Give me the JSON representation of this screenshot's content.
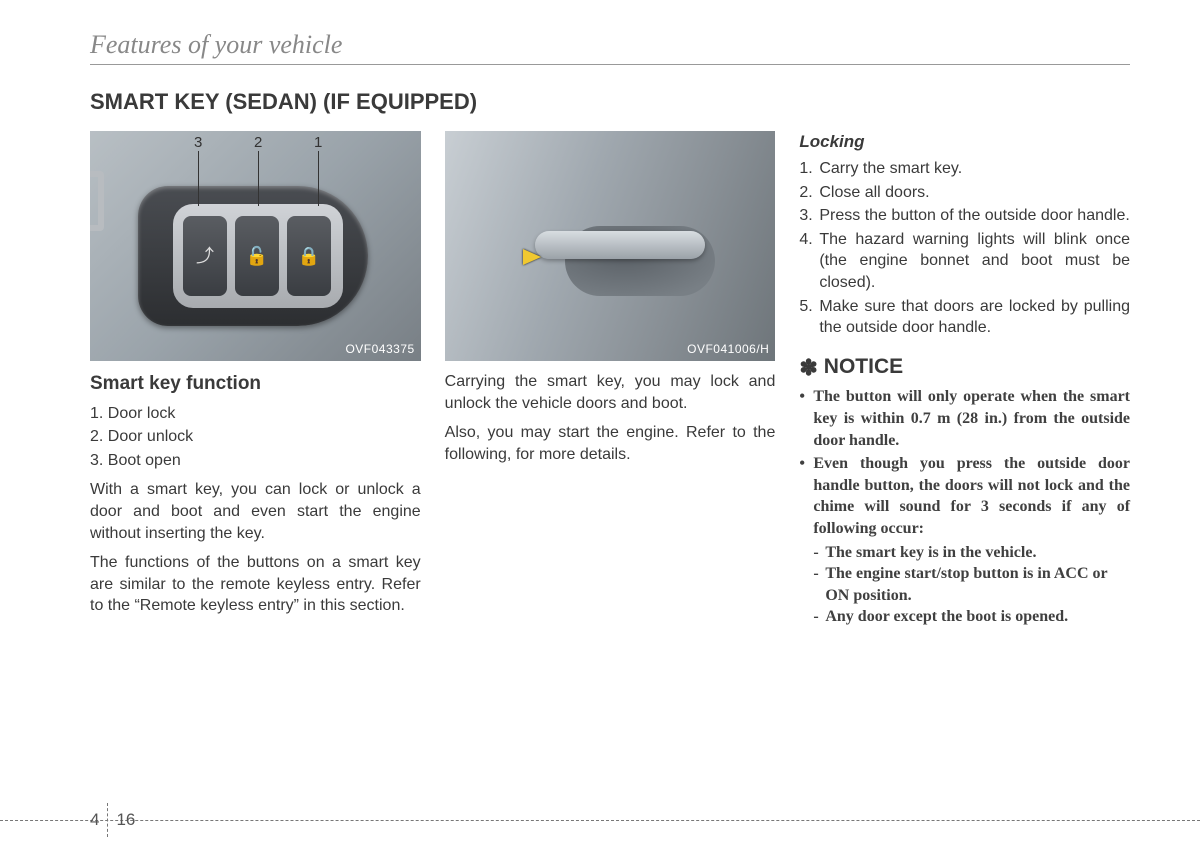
{
  "chapter_title": "Features of your vehicle",
  "section_title": "SMART KEY (SEDAN) (IF EQUIPPED)",
  "page": {
    "chapter": "4",
    "number": "16"
  },
  "col1": {
    "image_caption": "OVF043375",
    "callouts": [
      "3",
      "2",
      "1"
    ],
    "subhead": "Smart key function",
    "functions": [
      "1. Door lock",
      "2. Door unlock",
      "3. Boot open"
    ],
    "para1": "With a smart key, you can lock or unlock a door and boot and even start the engine without inserting the key.",
    "para2": "The functions of the buttons on a smart key are similar to the remote keyless entry. Refer to the “Remote keyless entry” in this section."
  },
  "col2": {
    "image_caption": "OVF041006/H",
    "para1": "Carrying the smart key, you may lock and unlock the vehicle doors and boot.",
    "para2": "Also, you may start the engine. Refer to the following, for more details."
  },
  "col3": {
    "locking_head": "Locking",
    "locking_items": [
      {
        "num": "1.",
        "txt": "Carry the smart key."
      },
      {
        "num": "2.",
        "txt": "Close all doors."
      },
      {
        "num": "3.",
        "txt": "Press the button of the outside door handle."
      },
      {
        "num": "4.",
        "txt": "The hazard warning lights will blink once (the engine bonnet and boot must be closed)."
      },
      {
        "num": "5.",
        "txt": "Make sure that doors are locked by pulling the outside door handle."
      }
    ],
    "notice_head": "NOTICE",
    "notice_items": [
      {
        "txt": "The button will only operate when the smart key is within 0.7 m (28 in.) from the outside door handle."
      },
      {
        "txt": "Even though you press the outside door handle button, the doors will not lock and the chime will sound for 3 seconds if any of following occur:",
        "subs": [
          "The smart key is in the vehicle.",
          "The engine start/stop button is in ACC or ON position.",
          "Any door except the boot is opened."
        ]
      }
    ]
  }
}
